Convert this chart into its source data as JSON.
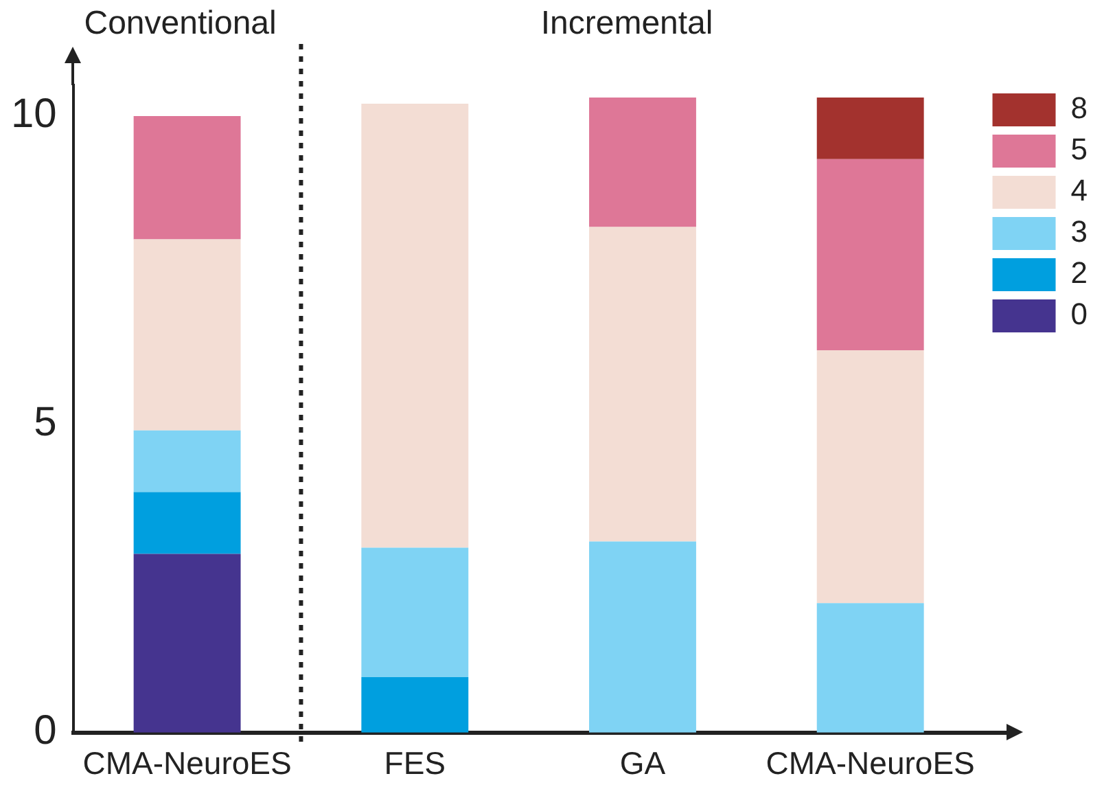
{
  "chart_data": {
    "type": "bar",
    "stacked": true,
    "categories": [
      "CMA-NeuroES",
      "FES",
      "GA",
      "CMA-NeuroES"
    ],
    "series": [
      {
        "name": "0",
        "color": "#45348f",
        "values": [
          2.9,
          0,
          0,
          0
        ]
      },
      {
        "name": "2",
        "color": "#009fdf",
        "values": [
          1.0,
          0.9,
          0,
          0
        ]
      },
      {
        "name": "3",
        "color": "#7fd3f4",
        "values": [
          1.0,
          2.1,
          3.1,
          2.1
        ]
      },
      {
        "name": "4",
        "color": "#f3ddd4",
        "values": [
          3.1,
          7.2,
          5.1,
          4.1
        ]
      },
      {
        "name": "5",
        "color": "#de7797",
        "values": [
          2.0,
          0,
          2.1,
          3.1
        ]
      },
      {
        "name": "8",
        "color": "#a3322e",
        "values": [
          0,
          0,
          0,
          1.0
        ]
      }
    ],
    "ylim": [
      0,
      10.5
    ],
    "yticks": [
      0,
      5,
      10
    ],
    "grid": false,
    "legend": "top right",
    "annotations": [
      "Conventional",
      "Incremental"
    ]
  }
}
